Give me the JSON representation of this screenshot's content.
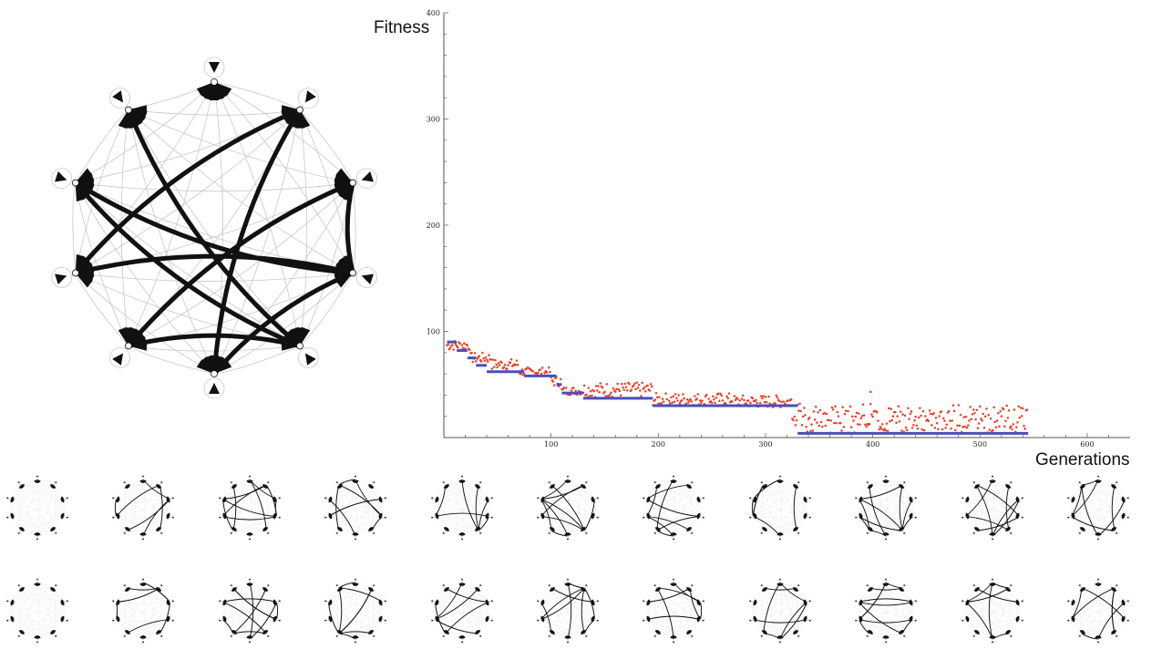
{
  "chart_data": {
    "type": "scatter",
    "xlabel": "Generations",
    "ylabel": "Fitness",
    "xlim": [
      0,
      640
    ],
    "ylim": [
      0,
      400
    ],
    "xticks": [
      100,
      200,
      300,
      400,
      500,
      600
    ],
    "yticks": [
      100,
      200,
      300,
      400
    ],
    "series": [
      {
        "color": "#e8402a",
        "marker": "dot",
        "description_values": "per-generation population fitness samples",
        "segments": [
          {
            "x": [
              3,
              25
            ],
            "y_range": [
              82,
              92
            ]
          },
          {
            "x": [
              25,
              45
            ],
            "y_range": [
              70,
              80
            ]
          },
          {
            "x": [
              45,
              70
            ],
            "y_range": [
              64,
              74
            ]
          },
          {
            "x": [
              70,
              100
            ],
            "y_range": [
              58,
              66
            ]
          },
          {
            "x": [
              100,
              110
            ],
            "y_range": [
              48,
              58
            ]
          },
          {
            "x": [
              110,
              130
            ],
            "y_range": [
              40,
              48
            ]
          },
          {
            "x": [
              130,
              195
            ],
            "y_range": [
              38,
              52
            ]
          },
          {
            "x": [
              195,
              270
            ],
            "y_range": [
              30,
              42
            ]
          },
          {
            "x": [
              270,
              325
            ],
            "y_range": [
              28,
              40
            ]
          },
          {
            "x": [
              325,
              545
            ],
            "y_range": [
              4,
              32
            ]
          }
        ]
      },
      {
        "color": "#4a4fb8",
        "marker": "line-step",
        "steps": [
          {
            "x": [
              3,
              12
            ],
            "y": 90
          },
          {
            "x": [
              12,
              22
            ],
            "y": 82
          },
          {
            "x": [
              22,
              30
            ],
            "y": 75
          },
          {
            "x": [
              30,
              40
            ],
            "y": 68
          },
          {
            "x": [
              40,
              75
            ],
            "y": 62
          },
          {
            "x": [
              75,
              105
            ],
            "y": 58
          },
          {
            "x": [
              105,
              110
            ],
            "y": 50
          },
          {
            "x": [
              110,
              130
            ],
            "y": 42
          },
          {
            "x": [
              130,
              195
            ],
            "y": 37
          },
          {
            "x": [
              195,
              330
            ],
            "y": 30
          },
          {
            "x": [
              330,
              545
            ],
            "y": 4
          }
        ]
      }
    ],
    "colors": {
      "accent_red": "#e8402a",
      "accent_blue": "#4a4fb8"
    }
  },
  "network": {
    "nodes": 10,
    "edges_bold": [
      [
        1,
        5
      ],
      [
        2,
        6
      ],
      [
        2,
        3
      ],
      [
        3,
        7
      ],
      [
        3,
        5
      ],
      [
        4,
        6
      ],
      [
        1,
        7
      ],
      [
        8,
        4
      ],
      [
        8,
        3
      ],
      [
        9,
        4
      ]
    ]
  },
  "mini_rows": [
    {
      "count": 11
    },
    {
      "count": 11
    }
  ]
}
